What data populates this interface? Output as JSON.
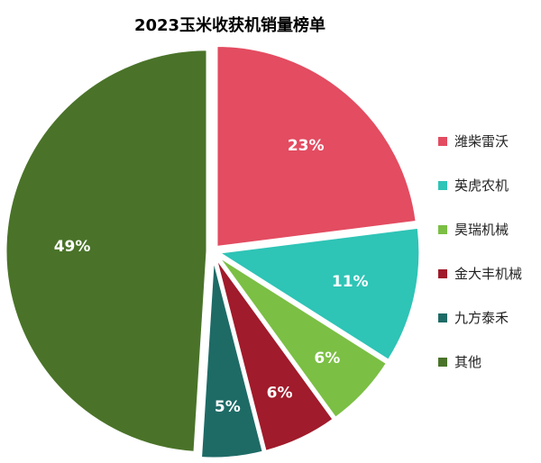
{
  "chart_data": {
    "type": "pie",
    "title": "2023玉米收获机销量榜单",
    "slices": [
      {
        "label": "潍柴雷沃",
        "value": 23,
        "display": "23%",
        "color": "#e34c61"
      },
      {
        "label": "英虎农机",
        "value": 11,
        "display": "11%",
        "color": "#2ec4b6"
      },
      {
        "label": "昊瑞机械",
        "value": 6,
        "display": "6%",
        "color": "#7bbf44"
      },
      {
        "label": "金大丰机械",
        "value": 6,
        "display": "6%",
        "color": "#a01b2b"
      },
      {
        "label": "九方泰禾",
        "value": 5,
        "display": "5%",
        "color": "#1e6b66"
      },
      {
        "label": "其他",
        "value": 49,
        "display": "49%",
        "color": "#4a7329"
      }
    ],
    "legend_position": "right"
  }
}
